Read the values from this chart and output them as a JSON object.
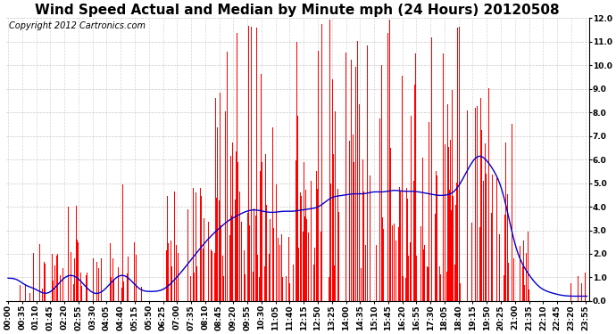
{
  "title": "Wind Speed Actual and Median by Minute mph (24 Hours) 20120508",
  "copyright": "Copyright 2012 Cartronics.com",
  "ylim": [
    0,
    12.0
  ],
  "yticks": [
    0.0,
    1.0,
    2.0,
    3.0,
    4.0,
    5.0,
    6.0,
    7.0,
    8.0,
    9.0,
    10.0,
    11.0,
    12.0
  ],
  "bar_color": "#FF0000",
  "line_color": "#0000CC",
  "background_color": "#FFFFFF",
  "grid_color": "#BBBBBB",
  "title_fontsize": 11,
  "copyright_fontsize": 7,
  "tick_fontsize": 6.5,
  "minutes_per_day": 1440,
  "tick_interval": 35
}
